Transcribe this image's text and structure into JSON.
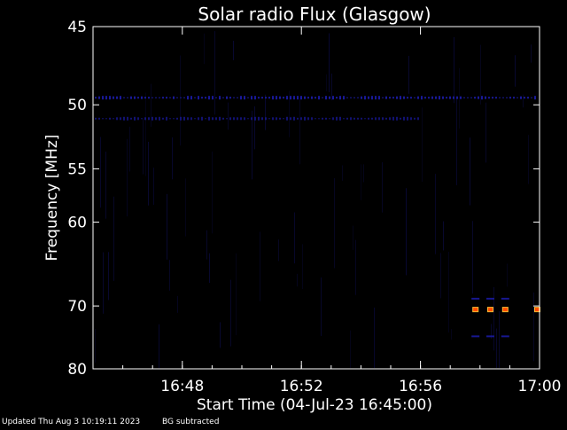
{
  "chart_data": {
    "type": "heatmap",
    "title": "Solar radio Flux (Glasgow)",
    "xlabel": "Start Time (04-Jul-23 16:45:00)",
    "ylabel": "Frequency [MHz]",
    "x_range": [
      "16:45",
      "17:00"
    ],
    "y_range": [
      45,
      80
    ],
    "x_ticks": [
      "16:48",
      "16:52",
      "16:56",
      "17:00"
    ],
    "y_ticks": [
      "45",
      "50",
      "55",
      "60",
      "70",
      "80"
    ],
    "grid": false,
    "colors": {
      "background": "#000000",
      "noise": "#0a0a3a",
      "band": "#1a1aa0",
      "burst_core": "#ff4a00",
      "burst_glow": "#ffbb33"
    },
    "features": [
      {
        "name": "band",
        "freq": 49.5,
        "start": "16:45",
        "end": "17:00",
        "intensity": "medium"
      },
      {
        "name": "band",
        "freq": 51,
        "start": "16:45",
        "end": "16:56",
        "intensity": "low"
      },
      {
        "name": "burst",
        "freq": 70.5,
        "times": [
          "16:57:50",
          "16:58:20",
          "16:58:50",
          "16:59:55"
        ],
        "intensity": "high"
      },
      {
        "name": "burst",
        "freq": 69,
        "times": [
          "16:57:50",
          "16:58:20",
          "16:58:50"
        ],
        "intensity": "low"
      },
      {
        "name": "burst",
        "freq": 74.5,
        "times": [
          "16:57:50",
          "16:58:20",
          "16:58:50"
        ],
        "intensity": "low"
      }
    ]
  },
  "footer": {
    "updated": "Updated Thu Aug  3 10:19:11 2023",
    "note": "BG subtracted"
  }
}
